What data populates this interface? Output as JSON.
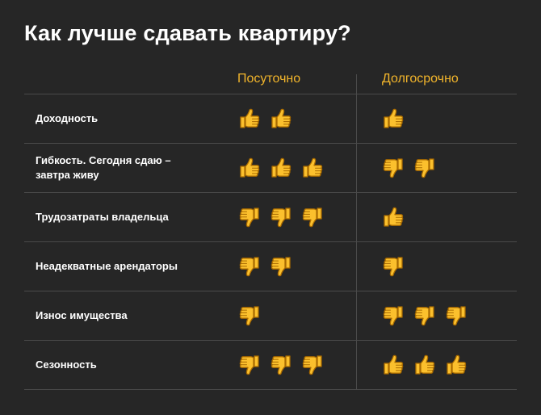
{
  "title": "Как лучше сдавать квартиру?",
  "columns": [
    "Посуточно",
    "Долгосрочно"
  ],
  "rows": [
    {
      "label": "Доходность",
      "daily": {
        "icon": "thumbs-up-icon",
        "count": 2
      },
      "longterm": {
        "icon": "thumbs-up-icon",
        "count": 1
      }
    },
    {
      "label": "Гибкость. Сегодня сдаю – завтра живу",
      "daily": {
        "icon": "thumbs-up-icon",
        "count": 3
      },
      "longterm": {
        "icon": "thumbs-down-icon",
        "count": 2
      }
    },
    {
      "label": "Трудозатраты владельца",
      "daily": {
        "icon": "thumbs-down-icon",
        "count": 3
      },
      "longterm": {
        "icon": "thumbs-up-icon",
        "count": 1
      }
    },
    {
      "label": "Неадекватные арендаторы",
      "daily": {
        "icon": "thumbs-down-icon",
        "count": 2
      },
      "longterm": {
        "icon": "thumbs-down-icon",
        "count": 1
      }
    },
    {
      "label": "Износ имущества",
      "daily": {
        "icon": "thumbs-down-icon",
        "count": 1
      },
      "longterm": {
        "icon": "thumbs-down-icon",
        "count": 3
      }
    },
    {
      "label": "Сезонность",
      "daily": {
        "icon": "thumbs-down-icon",
        "count": 3
      },
      "longterm": {
        "icon": "thumbs-up-icon",
        "count": 3
      }
    }
  ],
  "colors": {
    "background": "#262626",
    "accent": "#f2b52b",
    "divider": "#4a4a4a",
    "text": "#ffffff",
    "thumb_fill": "#fbc02d",
    "thumb_outline": "#a86a00"
  }
}
